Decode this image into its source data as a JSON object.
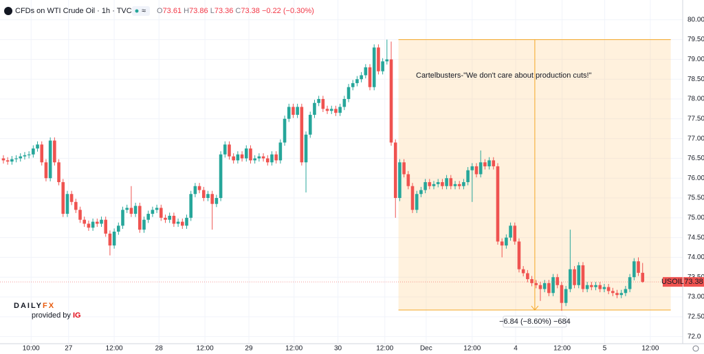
{
  "header": {
    "title": "CFDs on WTI Crude Oil · 1h · TVC",
    "ohlc_letters": [
      "O",
      "H",
      "L",
      "C"
    ],
    "change": "−0.22 (−0.30%)"
  },
  "logo": {
    "brand": "DAILY",
    "brand_accent": "FX",
    "tagline": "provided by",
    "tagline_accent": "IG"
  },
  "chart_data": {
    "type": "candlestick",
    "series": [
      {
        "name": "USOIL",
        "up_color": "#26a69a",
        "down_color": "#ef5350",
        "open": [
          76.5,
          76.45,
          76.42,
          76.48,
          76.5,
          76.55,
          76.58,
          76.6,
          76.75,
          76.85,
          76.4,
          76.0,
          76.95,
          76.4,
          75.9,
          75.1,
          75.6,
          75.4,
          75.2,
          74.95,
          74.85,
          74.75,
          74.9,
          74.85,
          74.95,
          74.6,
          74.3,
          74.65,
          74.8,
          75.2,
          75.25,
          75.1,
          75.3,
          74.7,
          74.95,
          75.1,
          75.2,
          75.25,
          75.0,
          74.95,
          75.05,
          74.85,
          74.9,
          74.8,
          75.0,
          75.6,
          75.8,
          75.7,
          75.5,
          75.6,
          75.35,
          75.5,
          76.6,
          76.85,
          76.55,
          76.45,
          76.6,
          76.5,
          76.75,
          76.45,
          76.5,
          76.55,
          76.5,
          76.4,
          76.6,
          76.45,
          76.9,
          77.5,
          77.8,
          77.6,
          77.8,
          76.4,
          77.1,
          77.6,
          77.9,
          78.0,
          77.75,
          77.7,
          77.75,
          77.65,
          77.8,
          78.0,
          78.3,
          78.4,
          78.5,
          78.6,
          78.8,
          78.3,
          79.3,
          78.7,
          78.95,
          79.0,
          76.9,
          75.5,
          76.4,
          76.1,
          75.8,
          75.2,
          75.6,
          75.7,
          75.9,
          75.8,
          75.85,
          75.9,
          75.8,
          76.0,
          75.8,
          75.85,
          75.8,
          75.9,
          76.2,
          76.3,
          76.1,
          76.4,
          76.3,
          76.45,
          76.3,
          74.4,
          74.3,
          74.5,
          74.8,
          74.4,
          73.7,
          73.6,
          73.45,
          73.35,
          73.3,
          73.2,
          73.35,
          73.1,
          73.5,
          73.3,
          72.85,
          73.2,
          73.7,
          73.3,
          73.8,
          73.2,
          73.3,
          73.25,
          73.3,
          73.2,
          73.25,
          73.15,
          73.1,
          73.05,
          73.1,
          73.2,
          73.5,
          73.9,
          73.61
        ],
        "high": [
          76.58,
          76.53,
          76.56,
          76.58,
          76.63,
          76.66,
          76.68,
          76.83,
          76.93,
          76.93,
          76.48,
          77.03,
          77.03,
          76.48,
          75.98,
          75.68,
          75.68,
          75.48,
          75.28,
          75.03,
          74.93,
          74.98,
          74.98,
          75.03,
          75.03,
          74.68,
          74.73,
          74.88,
          75.28,
          75.33,
          75.8,
          75.38,
          75.38,
          75.03,
          75.18,
          75.28,
          75.33,
          75.33,
          75.08,
          75.13,
          75.13,
          74.98,
          74.98,
          75.08,
          75.68,
          75.88,
          75.88,
          75.78,
          75.68,
          75.68,
          75.58,
          76.68,
          76.93,
          76.93,
          76.63,
          76.68,
          76.68,
          76.83,
          76.83,
          76.58,
          76.63,
          76.63,
          76.58,
          76.68,
          76.68,
          76.98,
          77.58,
          77.88,
          77.88,
          77.88,
          77.88,
          77.18,
          77.68,
          77.98,
          78.08,
          78.08,
          77.83,
          77.83,
          77.83,
          77.88,
          78.08,
          78.38,
          78.48,
          78.58,
          78.68,
          78.88,
          78.88,
          79.38,
          79.38,
          79.03,
          79.5,
          79.45,
          76.98,
          76.48,
          76.48,
          76.18,
          75.88,
          75.68,
          75.78,
          75.98,
          75.98,
          75.93,
          75.98,
          75.98,
          76.08,
          76.08,
          75.93,
          75.93,
          75.98,
          76.28,
          76.38,
          76.38,
          76.7,
          76.48,
          76.53,
          76.53,
          76.38,
          74.48,
          74.58,
          74.88,
          74.88,
          74.48,
          73.78,
          73.68,
          73.53,
          73.43,
          73.38,
          73.43,
          73.43,
          73.58,
          73.58,
          73.38,
          73.28,
          74.7,
          73.78,
          73.88,
          73.88,
          73.38,
          73.38,
          73.38,
          73.38,
          73.33,
          73.33,
          73.23,
          73.18,
          73.18,
          73.28,
          73.58,
          73.98,
          74.0,
          73.86
        ],
        "low": [
          76.37,
          76.34,
          76.34,
          76.4,
          76.42,
          76.47,
          76.5,
          76.52,
          76.67,
          76.32,
          75.92,
          75.92,
          76.32,
          75.82,
          75.02,
          75.02,
          75.32,
          75.12,
          74.87,
          74.77,
          74.67,
          74.67,
          74.77,
          74.77,
          74.52,
          74.05,
          74.22,
          74.57,
          74.72,
          75.12,
          75.02,
          75.02,
          74.62,
          74.62,
          74.87,
          75.02,
          75.12,
          74.92,
          74.87,
          74.87,
          74.77,
          74.77,
          74.72,
          74.72,
          74.92,
          75.52,
          75.62,
          75.42,
          75.42,
          74.7,
          75.27,
          75.42,
          76.52,
          76.47,
          76.37,
          76.37,
          76.42,
          76.42,
          76.37,
          76.37,
          76.42,
          76.42,
          76.32,
          76.32,
          76.37,
          76.37,
          76.82,
          77.42,
          77.52,
          77.52,
          76.32,
          75.64,
          77.02,
          77.52,
          77.82,
          77.67,
          77.62,
          77.62,
          77.57,
          77.57,
          77.72,
          77.92,
          78.22,
          78.32,
          78.42,
          78.52,
          78.22,
          78.22,
          78.62,
          78.62,
          78.87,
          76.82,
          75.0,
          75.42,
          76.02,
          75.72,
          75.12,
          75.12,
          75.52,
          75.62,
          75.72,
          75.72,
          75.77,
          75.72,
          75.72,
          75.72,
          75.72,
          75.72,
          75.72,
          75.82,
          75.4,
          76.02,
          76.02,
          76.22,
          76.22,
          76.22,
          74.32,
          74.0,
          74.22,
          74.42,
          74.32,
          73.62,
          73.52,
          73.37,
          73.27,
          73.22,
          72.9,
          73.12,
          73.02,
          73.02,
          73.22,
          72.65,
          72.77,
          73.12,
          73.22,
          73.22,
          73.12,
          73.12,
          73.17,
          73.17,
          73.12,
          73.12,
          73.07,
          73.02,
          72.97,
          72.97,
          73.02,
          73.12,
          73.42,
          73.53,
          73.36
        ],
        "close": [
          76.45,
          76.42,
          76.48,
          76.5,
          76.55,
          76.58,
          76.6,
          76.75,
          76.85,
          76.4,
          76.0,
          76.95,
          76.4,
          75.9,
          75.1,
          75.6,
          75.4,
          75.2,
          74.95,
          74.85,
          74.75,
          74.9,
          74.85,
          74.95,
          74.6,
          74.3,
          74.65,
          74.8,
          75.2,
          75.25,
          75.1,
          75.3,
          74.7,
          74.95,
          75.1,
          75.2,
          75.25,
          75.0,
          74.95,
          75.05,
          74.85,
          74.9,
          74.8,
          75.0,
          75.6,
          75.8,
          75.7,
          75.5,
          75.6,
          75.35,
          75.5,
          76.6,
          76.85,
          76.55,
          76.45,
          76.6,
          76.5,
          76.75,
          76.45,
          76.5,
          76.55,
          76.5,
          76.4,
          76.6,
          76.45,
          76.9,
          77.5,
          77.8,
          77.6,
          77.8,
          76.4,
          77.1,
          77.6,
          77.9,
          78.0,
          77.75,
          77.7,
          77.75,
          77.65,
          77.8,
          78.0,
          78.3,
          78.4,
          78.5,
          78.6,
          78.8,
          78.3,
          79.3,
          78.7,
          78.95,
          79.0,
          76.9,
          75.5,
          76.4,
          76.1,
          75.8,
          75.2,
          75.6,
          75.7,
          75.9,
          75.8,
          75.85,
          75.9,
          75.8,
          76.0,
          75.8,
          75.85,
          75.8,
          75.9,
          76.2,
          76.3,
          76.1,
          76.4,
          76.3,
          76.45,
          76.3,
          74.4,
          74.3,
          74.5,
          74.8,
          74.4,
          73.7,
          73.6,
          73.45,
          73.35,
          73.3,
          73.2,
          73.35,
          73.1,
          73.5,
          73.3,
          72.85,
          73.2,
          73.7,
          73.3,
          73.8,
          73.2,
          73.3,
          73.25,
          73.3,
          73.2,
          73.25,
          73.15,
          73.1,
          73.05,
          73.1,
          73.2,
          73.5,
          73.9,
          73.61,
          73.38
        ]
      }
    ],
    "xlim": [
      -0.8,
      159.4
    ],
    "ylim": [
      71.82,
      80.5
    ],
    "xticks": [
      {
        "value": 6.5,
        "label": "10:00"
      },
      {
        "value": 15.3,
        "label": "27"
      },
      {
        "value": 26.0,
        "label": "12:00"
      },
      {
        "value": 36.5,
        "label": "28"
      },
      {
        "value": 47.3,
        "label": "12:00"
      },
      {
        "value": 57.6,
        "label": "29"
      },
      {
        "value": 68.2,
        "label": "12:00"
      },
      {
        "value": 78.5,
        "label": "30"
      },
      {
        "value": 89.5,
        "label": "12:00"
      },
      {
        "value": 99.2,
        "label": "Dec"
      },
      {
        "value": 110.0,
        "label": "12:00"
      },
      {
        "value": 120.2,
        "label": "4"
      },
      {
        "value": 131.1,
        "label": "12:00"
      },
      {
        "value": 141.1,
        "label": "5"
      },
      {
        "value": 151.8,
        "label": "12:00"
      }
    ],
    "yticks": [
      {
        "value": 72,
        "label": "72.0"
      },
      {
        "value": 72.5,
        "label": "72.50"
      },
      {
        "value": 73,
        "label": "73.00"
      },
      {
        "value": 73.5,
        "label": "73.50"
      },
      {
        "value": 74,
        "label": "74.00"
      },
      {
        "value": 74.5,
        "label": "74.50"
      },
      {
        "value": 75,
        "label": "75.00"
      },
      {
        "value": 75.5,
        "label": "75.50"
      },
      {
        "value": 76,
        "label": "76.00"
      },
      {
        "value": 76.5,
        "label": "76.50"
      },
      {
        "value": 77,
        "label": "77.00"
      },
      {
        "value": 77.5,
        "label": "77.50"
      },
      {
        "value": 78,
        "label": "78.00"
      },
      {
        "value": 78.5,
        "label": "78.50"
      },
      {
        "value": 79,
        "label": "79.00"
      },
      {
        "value": 79.5,
        "label": "79.50"
      },
      {
        "value": 80,
        "label": "80.00"
      }
    ],
    "grid": true,
    "annotation": "Cartelbusters-\"We don't care about production cuts!\"",
    "range_box": {
      "x": [
        92.7,
        156.6
      ],
      "y": [
        79.5,
        72.67
      ],
      "measure_x": 124.7,
      "label": "−6.84 (−8.60%) −684"
    }
  }
}
